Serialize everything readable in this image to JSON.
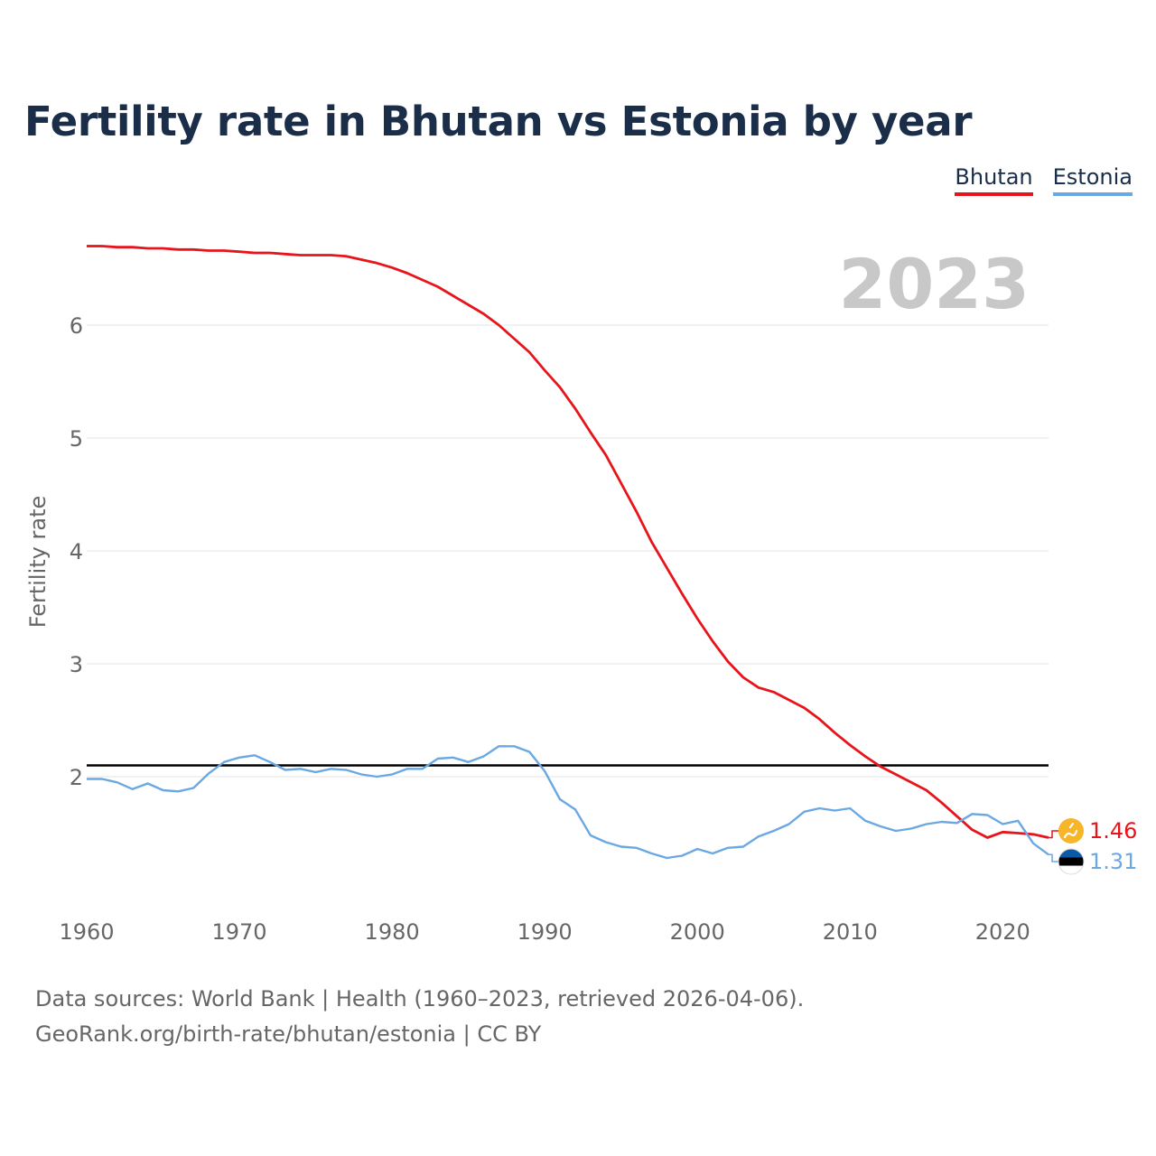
{
  "title": "Fertility rate in Bhutan vs Estonia by year",
  "legend": {
    "bhutan": "Bhutan",
    "estonia": "Estonia"
  },
  "footer": {
    "line1": "Data sources: World Bank | Health (1960–2023, retrieved 2026-04-06).",
    "line2": "GeoRank.org/birth-rate/bhutan/estonia | CC BY"
  },
  "chart_data": {
    "type": "line",
    "title": "Fertility rate in Bhutan vs Estonia by year",
    "year_label": "2023",
    "ylabel": "Fertility rate",
    "xlabel": "",
    "xlim": [
      1960,
      2023
    ],
    "ylim": [
      1.0,
      6.8
    ],
    "x_ticks": [
      1960,
      1970,
      1980,
      1990,
      2000,
      2010,
      2020
    ],
    "y_ticks": [
      2,
      3,
      4,
      5,
      6
    ],
    "grid": true,
    "legend_position": "top-right",
    "reference_line": {
      "value": 2.1,
      "color": "#000000"
    },
    "x": [
      1960,
      1961,
      1962,
      1963,
      1964,
      1965,
      1966,
      1967,
      1968,
      1969,
      1970,
      1971,
      1972,
      1973,
      1974,
      1975,
      1976,
      1977,
      1978,
      1979,
      1980,
      1981,
      1982,
      1983,
      1984,
      1985,
      1986,
      1987,
      1988,
      1989,
      1990,
      1991,
      1992,
      1993,
      1994,
      1995,
      1996,
      1997,
      1998,
      1999,
      2000,
      2001,
      2002,
      2003,
      2004,
      2005,
      2006,
      2007,
      2008,
      2009,
      2010,
      2011,
      2012,
      2013,
      2014,
      2015,
      2016,
      2017,
      2018,
      2019,
      2020,
      2021,
      2022,
      2023
    ],
    "series": [
      {
        "name": "Bhutan",
        "color": "#e8141b",
        "end_label": "1.46",
        "values": [
          6.7,
          6.7,
          6.69,
          6.69,
          6.68,
          6.68,
          6.67,
          6.67,
          6.66,
          6.66,
          6.65,
          6.64,
          6.64,
          6.63,
          6.62,
          6.62,
          6.62,
          6.61,
          6.58,
          6.55,
          6.51,
          6.46,
          6.4,
          6.34,
          6.26,
          6.18,
          6.1,
          6.0,
          5.88,
          5.76,
          5.6,
          5.45,
          5.26,
          5.05,
          4.85,
          4.6,
          4.35,
          4.08,
          3.85,
          3.62,
          3.4,
          3.2,
          3.02,
          2.88,
          2.79,
          2.75,
          2.68,
          2.61,
          2.51,
          2.39,
          2.28,
          2.18,
          2.09,
          2.02,
          1.95,
          1.88,
          1.77,
          1.65,
          1.53,
          1.46,
          1.51,
          1.5,
          1.49,
          1.46
        ]
      },
      {
        "name": "Estonia",
        "color": "#6aa8e3",
        "end_label": "1.31",
        "values": [
          1.98,
          1.98,
          1.95,
          1.89,
          1.94,
          1.88,
          1.87,
          1.9,
          2.03,
          2.13,
          2.17,
          2.19,
          2.13,
          2.06,
          2.07,
          2.04,
          2.07,
          2.06,
          2.02,
          2.0,
          2.02,
          2.07,
          2.07,
          2.16,
          2.17,
          2.13,
          2.18,
          2.27,
          2.27,
          2.22,
          2.05,
          1.8,
          1.71,
          1.48,
          1.42,
          1.38,
          1.37,
          1.32,
          1.28,
          1.3,
          1.36,
          1.32,
          1.37,
          1.38,
          1.47,
          1.52,
          1.58,
          1.69,
          1.72,
          1.7,
          1.72,
          1.61,
          1.56,
          1.52,
          1.54,
          1.58,
          1.6,
          1.59,
          1.67,
          1.66,
          1.58,
          1.61,
          1.41,
          1.31
        ]
      }
    ]
  }
}
